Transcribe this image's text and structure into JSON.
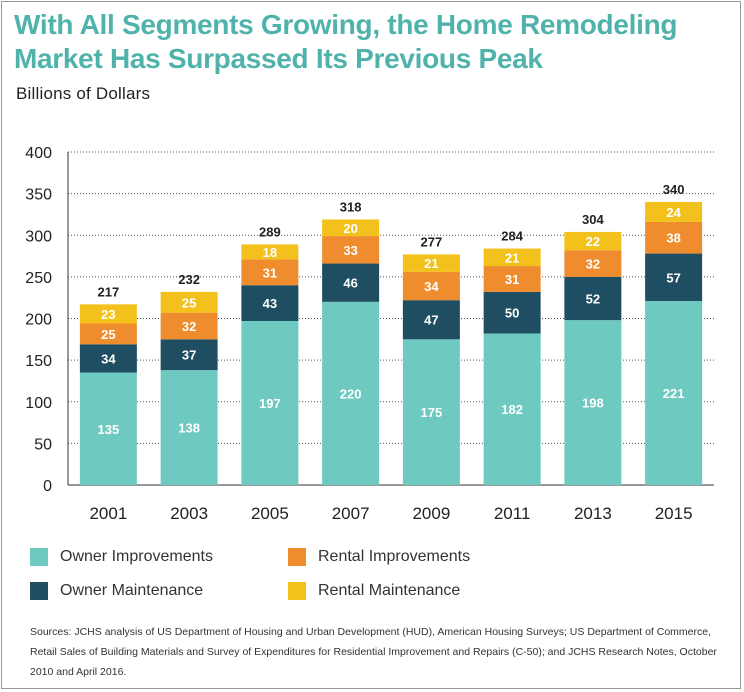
{
  "title_line1": "With All Segments Growing, the Home Remodeling",
  "title_line2": "Market Has Surpassed Its Previous Peak",
  "subtitle": "Billions of Dollars",
  "sources": "Sources: JCHS analysis of US Department of Housing and Urban Development (HUD), American Housing Surveys; US Department of Commerce, Retail Sales of Building Materials and Survey of Expenditures for Residential Improvement and Repairs (C-50); and JCHS Research Notes, October 2010 and April 2016.",
  "colors": {
    "owner_improvements": "#6ecac1",
    "owner_maintenance": "#1f4e63",
    "rental_improvements": "#ef8c2e",
    "rental_maintenance": "#f3c11c",
    "title": "#4fb3ac"
  },
  "chart_data": {
    "type": "bar",
    "stacked": true,
    "categories": [
      "2001",
      "2003",
      "2005",
      "2007",
      "2009",
      "2011",
      "2013",
      "2015"
    ],
    "series": [
      {
        "name": "Owner Improvements",
        "values": [
          135,
          138,
          197,
          220,
          175,
          182,
          198,
          221
        ]
      },
      {
        "name": "Owner Maintenance",
        "values": [
          34,
          37,
          43,
          46,
          47,
          50,
          52,
          57
        ]
      },
      {
        "name": "Rental Improvements",
        "values": [
          25,
          32,
          31,
          33,
          34,
          31,
          32,
          38
        ]
      },
      {
        "name": "Rental Maintenance",
        "values": [
          23,
          25,
          18,
          20,
          21,
          21,
          22,
          24
        ]
      }
    ],
    "totals": [
      217,
      232,
      289,
      318,
      277,
      284,
      304,
      340
    ],
    "ylim": [
      0,
      400
    ],
    "yticks": [
      0,
      50,
      100,
      150,
      200,
      250,
      300,
      350,
      400
    ],
    "grid": "horizontal dotted",
    "legend_position": "bottom"
  },
  "legend": [
    {
      "label": "Owner Improvements",
      "color": "#6ecac1"
    },
    {
      "label": "Rental Improvements",
      "color": "#ef8c2e"
    },
    {
      "label": "Owner Maintenance",
      "color": "#1f4e63"
    },
    {
      "label": "Rental Maintenance",
      "color": "#f3c11c"
    }
  ]
}
